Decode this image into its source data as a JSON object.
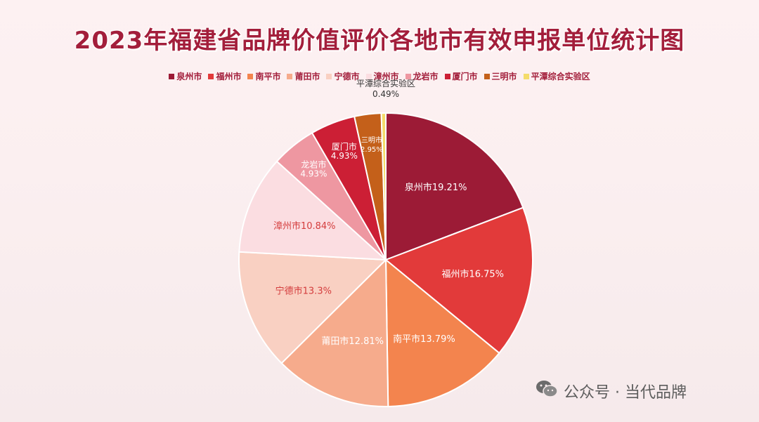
{
  "chart_data": {
    "type": "pie",
    "title": "2023年福建省品牌价值评价各地市有效申报单位统计图",
    "legend_position": "top",
    "slices": [
      {
        "name": "泉州市",
        "label": "泉州市19.21%",
        "value": 19.21,
        "color": "#9c1b36",
        "label_color": "#ffffff"
      },
      {
        "name": "福州市",
        "label": "福州市16.75%",
        "value": 16.75,
        "color": "#e23a3a",
        "label_color": "#ffffff"
      },
      {
        "name": "南平市",
        "label": "南平市13.79%",
        "value": 13.79,
        "color": "#f3844e",
        "label_color": "#ffffff"
      },
      {
        "name": "莆田市",
        "label": "莆田市12.81%",
        "value": 12.81,
        "color": "#f6ab8c",
        "label_color": "#ffffff"
      },
      {
        "name": "宁德市",
        "label": "宁德市13.3%",
        "value": 13.3,
        "color": "#f9d0c2",
        "label_color": "#d43d3d"
      },
      {
        "name": "漳州市",
        "label": "漳州市10.84%",
        "value": 10.84,
        "color": "#fbdde1",
        "label_color": "#d43d3d"
      },
      {
        "name": "龙岩市",
        "label": "龙岩市 4.93%",
        "value": 4.93,
        "color": "#ee97a1",
        "label_color": "#ffffff"
      },
      {
        "name": "厦门市",
        "label": "厦门市 4.93%",
        "value": 4.93,
        "color": "#cc1f35",
        "label_color": "#ffffff"
      },
      {
        "name": "三明市",
        "label": "三明市 2.95%",
        "value": 2.95,
        "color": "#c4601a",
        "label_color": "#ffffff"
      },
      {
        "name": "平潭综合实验区",
        "label": "平潭综合实验区 0.49%",
        "value": 0.49,
        "color": "#f4dc6a",
        "label_color": "#333333"
      }
    ]
  },
  "watermark": {
    "text": "公众号 · 当代品牌",
    "icon": "wechat-icon"
  }
}
